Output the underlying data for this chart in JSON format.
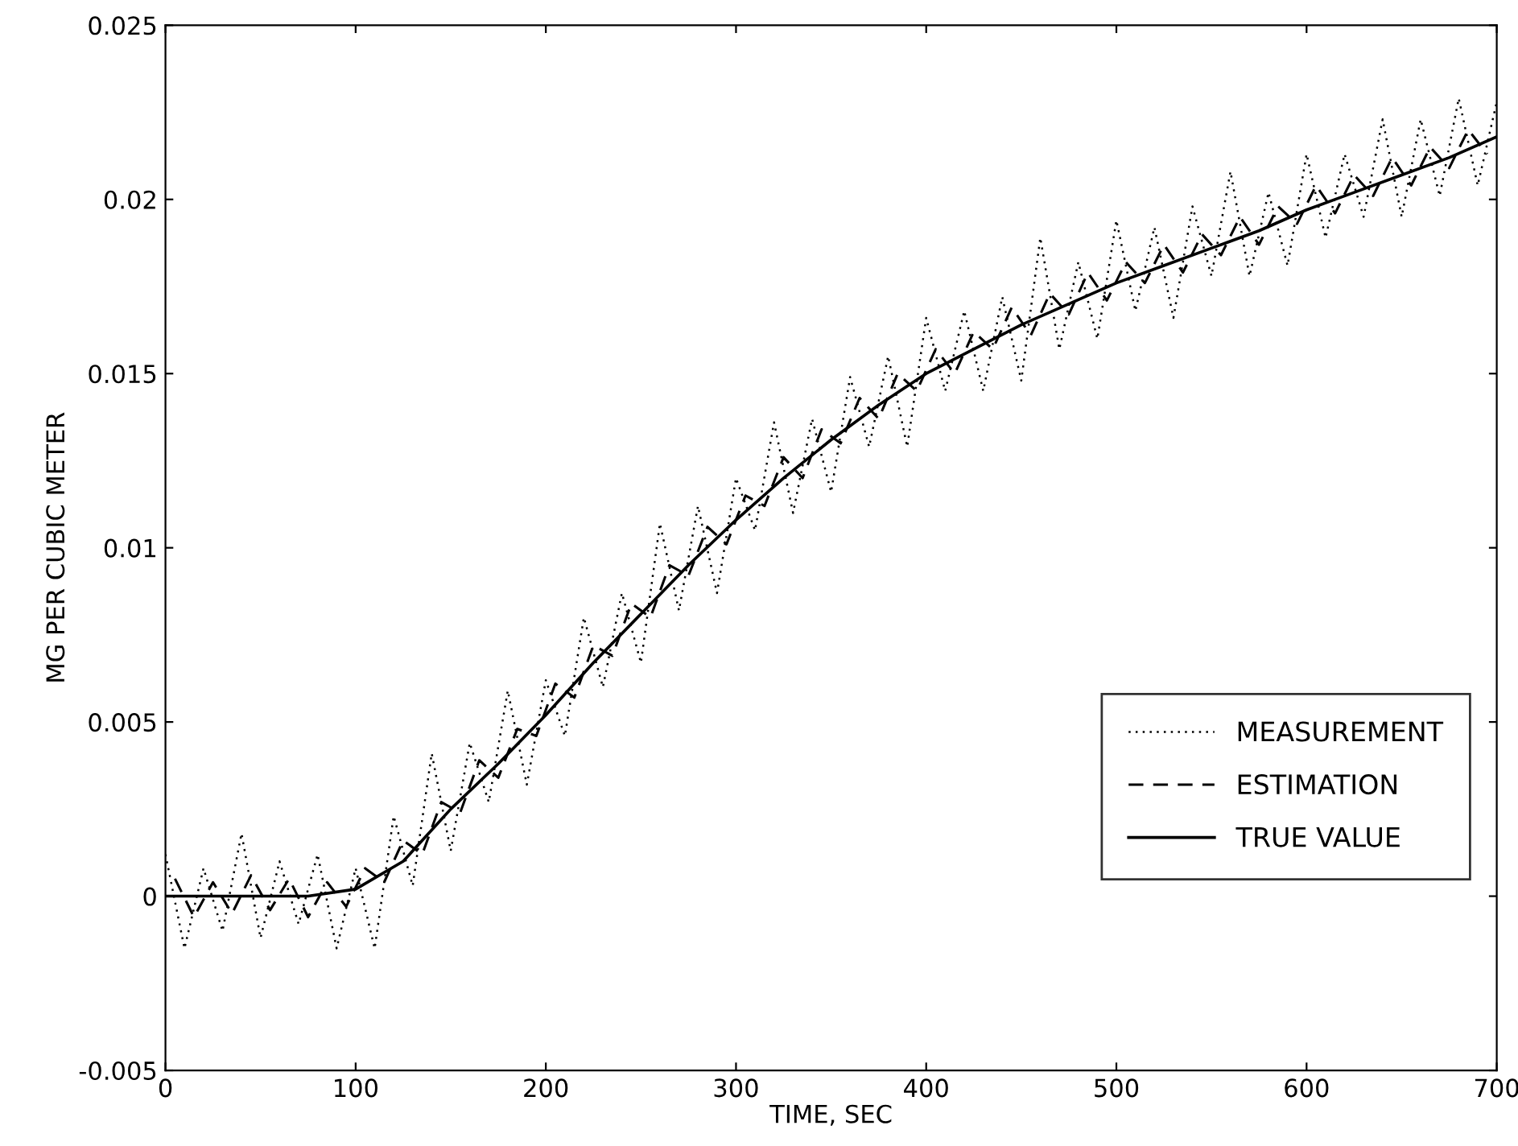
{
  "chart_data": {
    "type": "line",
    "xlabel": "TIME, SEC",
    "ylabel": "MG PER CUBIC METER",
    "xlim": [
      0,
      700
    ],
    "xticks": [
      0,
      100,
      200,
      300,
      400,
      500,
      600,
      700
    ],
    "ylim": [
      -0.005,
      0.025
    ],
    "yticks": [
      {
        "value": -0.005,
        "label": "-0.005"
      },
      0,
      0.005,
      0.01,
      0.015,
      0.02,
      0.025
    ],
    "grid": false,
    "legend": "lower right",
    "marker": "none",
    "series": [
      {
        "name": "MEASUREMENT",
        "color": "#000000",
        "line_style": "dotted",
        "x": [
          0,
          10,
          20,
          30,
          40,
          50,
          60,
          70,
          80,
          90,
          100,
          110,
          120,
          130,
          140,
          150,
          160,
          170,
          180,
          190,
          200,
          210,
          220,
          230,
          240,
          250,
          260,
          270,
          280,
          290,
          300,
          310,
          320,
          330,
          340,
          350,
          360,
          370,
          380,
          390,
          400,
          410,
          420,
          430,
          440,
          450,
          460,
          470,
          480,
          490,
          500,
          510,
          520,
          530,
          540,
          550,
          560,
          570,
          580,
          590,
          600,
          610,
          620,
          630,
          640,
          650,
          660,
          670,
          680,
          690,
          700
        ],
        "values": [
          0.0012,
          -0.0015,
          0.0008,
          -0.001,
          0.0018,
          -0.0012,
          0.001,
          -0.0008,
          0.0012,
          -0.0015,
          0.0008,
          -0.0015,
          0.0023,
          0.0003,
          0.0041,
          0.0013,
          0.0044,
          0.0027,
          0.0059,
          0.0032,
          0.0062,
          0.0046,
          0.008,
          0.006,
          0.0087,
          0.0067,
          0.0107,
          0.0082,
          0.0112,
          0.0087,
          0.012,
          0.0105,
          0.0136,
          0.011,
          0.0137,
          0.0116,
          0.0149,
          0.0129,
          0.0155,
          0.0129,
          0.0166,
          0.0145,
          0.0168,
          0.0145,
          0.0172,
          0.0148,
          0.0189,
          0.0157,
          0.0182,
          0.016,
          0.0194,
          0.0168,
          0.0192,
          0.0166,
          0.0198,
          0.0178,
          0.0208,
          0.0178,
          0.0202,
          0.0181,
          0.0213,
          0.0189,
          0.0213,
          0.0195,
          0.0223,
          0.0195,
          0.0223,
          0.0201,
          0.0229,
          0.0204,
          0.0228
        ]
      },
      {
        "name": "ESTIMATION",
        "color": "#000000",
        "line_style": "dashed",
        "x": [
          5,
          15,
          25,
          35,
          45,
          55,
          65,
          75,
          85,
          95,
          105,
          115,
          125,
          135,
          145,
          155,
          165,
          175,
          185,
          195,
          205,
          215,
          225,
          235,
          245,
          255,
          265,
          275,
          285,
          295,
          305,
          315,
          325,
          335,
          345,
          355,
          365,
          375,
          385,
          395,
          405,
          415,
          425,
          435,
          445,
          455,
          465,
          475,
          485,
          495,
          505,
          515,
          525,
          535,
          545,
          555,
          565,
          575,
          585,
          595,
          605,
          615,
          625,
          635,
          645,
          655,
          665,
          675,
          685,
          695
        ],
        "values": [
          0.0005,
          -0.0006,
          0.0004,
          -0.0005,
          0.0006,
          -0.0004,
          0.0005,
          -0.0006,
          0.0004,
          -0.0003,
          0.0008,
          0.0004,
          0.0016,
          0.0012,
          0.0027,
          0.0024,
          0.0039,
          0.0034,
          0.0048,
          0.0046,
          0.0061,
          0.0057,
          0.0072,
          0.0069,
          0.0084,
          0.008,
          0.0095,
          0.0092,
          0.0106,
          0.0101,
          0.0115,
          0.0112,
          0.0126,
          0.012,
          0.0134,
          0.013,
          0.0143,
          0.0137,
          0.015,
          0.0145,
          0.0157,
          0.015,
          0.0162,
          0.0157,
          0.0169,
          0.0161,
          0.0173,
          0.0167,
          0.0179,
          0.0171,
          0.0182,
          0.0176,
          0.0187,
          0.0179,
          0.019,
          0.0184,
          0.0195,
          0.0187,
          0.0198,
          0.0193,
          0.0204,
          0.0196,
          0.0207,
          0.0201,
          0.0212,
          0.0204,
          0.0215,
          0.0209,
          0.022,
          0.0213
        ]
      },
      {
        "name": "TRUE VALUE",
        "color": "#000000",
        "line_style": "solid",
        "x": [
          0,
          25,
          50,
          75,
          100,
          125,
          150,
          175,
          200,
          225,
          250,
          275,
          300,
          325,
          350,
          375,
          400,
          425,
          450,
          475,
          500,
          525,
          550,
          575,
          600,
          625,
          650,
          675,
          700
        ],
        "values": [
          0,
          0,
          0,
          0,
          0.0002,
          0.001,
          0.0025,
          0.0038,
          0.0052,
          0.0067,
          0.0081,
          0.0095,
          0.0108,
          0.012,
          0.0131,
          0.0141,
          0.015,
          0.0157,
          0.0164,
          0.017,
          0.0176,
          0.0181,
          0.0186,
          0.0191,
          0.0197,
          0.0202,
          0.0207,
          0.0212,
          0.0218
        ]
      }
    ]
  }
}
